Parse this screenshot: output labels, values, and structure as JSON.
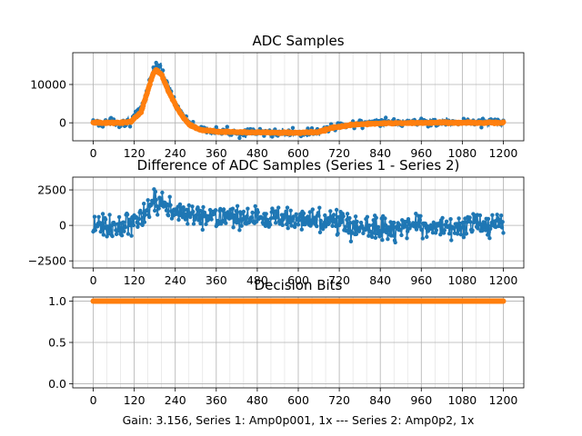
{
  "figure": {
    "xlabel": "Gain: 3.156, Series 1: Amp0p001, 1x --- Series 2: Amp0p2, 1x"
  },
  "colors": {
    "series1": "#1f77b4",
    "series2": "#ff7f0e",
    "grid": "#b0b0b0"
  },
  "chart_data": [
    {
      "type": "line",
      "title": "ADC Samples",
      "xlim": [
        -60,
        1260
      ],
      "ylim": [
        -4700,
        18300
      ],
      "x_ticks": [
        "0",
        "120",
        "240",
        "360",
        "480",
        "600",
        "720",
        "840",
        "960",
        "1080",
        "1200"
      ],
      "y_ticks": [
        0,
        10000
      ],
      "y_tick_labels": [
        "0",
        "10000"
      ],
      "grid": true,
      "minor_grid_x": true,
      "x_range": [
        0,
        1200
      ],
      "series": [
        {
          "style": "line+markers",
          "noise": 900,
          "points": [
            [
              0,
              0
            ],
            [
              40,
              0
            ],
            [
              80,
              0
            ],
            [
              110,
              500
            ],
            [
              140,
              3500
            ],
            [
              160,
              9500
            ],
            [
              175,
              14000
            ],
            [
              185,
              15200
            ],
            [
              200,
              14000
            ],
            [
              220,
              9500
            ],
            [
              240,
              5500
            ],
            [
              260,
              2500
            ],
            [
              280,
              0
            ],
            [
              310,
              -1800
            ],
            [
              360,
              -2400
            ],
            [
              480,
              -2600
            ],
            [
              600,
              -2700
            ],
            [
              660,
              -2500
            ],
            [
              700,
              -1200
            ],
            [
              760,
              -200
            ],
            [
              840,
              0
            ],
            [
              960,
              200
            ],
            [
              1080,
              150
            ],
            [
              1200,
              0
            ]
          ]
        },
        {
          "style": "markers",
          "noise": 150,
          "points": [
            [
              0,
              0
            ],
            [
              40,
              0
            ],
            [
              80,
              0
            ],
            [
              110,
              300
            ],
            [
              140,
              2800
            ],
            [
              160,
              8500
            ],
            [
              175,
              12800
            ],
            [
              185,
              13800
            ],
            [
              200,
              12600
            ],
            [
              220,
              8300
            ],
            [
              240,
              4700
            ],
            [
              260,
              1800
            ],
            [
              280,
              -400
            ],
            [
              310,
              -1800
            ],
            [
              360,
              -2300
            ],
            [
              480,
              -2500
            ],
            [
              600,
              -2600
            ],
            [
              660,
              -2400
            ],
            [
              700,
              -1300
            ],
            [
              760,
              -500
            ],
            [
              840,
              -150
            ],
            [
              960,
              0
            ],
            [
              1080,
              0
            ],
            [
              1200,
              0
            ]
          ]
        }
      ]
    },
    {
      "type": "line",
      "title": "Difference of ADC Samples (Series 1 - Series 2)",
      "xlim": [
        -60,
        1260
      ],
      "ylim": [
        -3000,
        3400
      ],
      "x_ticks": [
        "0",
        "120",
        "240",
        "360",
        "480",
        "600",
        "720",
        "840",
        "960",
        "1080",
        "1200"
      ],
      "y_ticks": [
        -2500,
        0,
        2500
      ],
      "y_tick_labels": [
        "−2500",
        "0",
        "2500"
      ],
      "grid": true,
      "minor_grid_x": true,
      "x_range": [
        0,
        1200
      ],
      "series": [
        {
          "style": "line+markers",
          "noise": 650,
          "points": [
            [
              0,
              0
            ],
            [
              60,
              -200
            ],
            [
              120,
              200
            ],
            [
              160,
              800
            ],
            [
              180,
              1800
            ],
            [
              200,
              1600
            ],
            [
              240,
              900
            ],
            [
              300,
              600
            ],
            [
              400,
              500
            ],
            [
              480,
              500
            ],
            [
              600,
              400
            ],
            [
              680,
              300
            ],
            [
              720,
              100
            ],
            [
              800,
              -200
            ],
            [
              900,
              -100
            ],
            [
              1000,
              0
            ],
            [
              1100,
              -100
            ],
            [
              1200,
              0
            ]
          ]
        }
      ]
    },
    {
      "type": "scatter",
      "title": "Decision Bits",
      "xlim": [
        -60,
        1260
      ],
      "ylim": [
        -0.05,
        1.05
      ],
      "x_ticks": [
        "0",
        "120",
        "240",
        "360",
        "480",
        "600",
        "720",
        "840",
        "960",
        "1080",
        "1200"
      ],
      "y_ticks": [
        0.0,
        0.5,
        1.0
      ],
      "y_tick_labels": [
        "0.0",
        "0.5",
        "1.0"
      ],
      "grid": true,
      "minor_grid_x": true,
      "x_range": [
        0,
        1200
      ],
      "series": [
        {
          "style": "line+markers",
          "constant": 1.0
        },
        {
          "style": "markers",
          "constant": 1.0
        }
      ]
    }
  ]
}
